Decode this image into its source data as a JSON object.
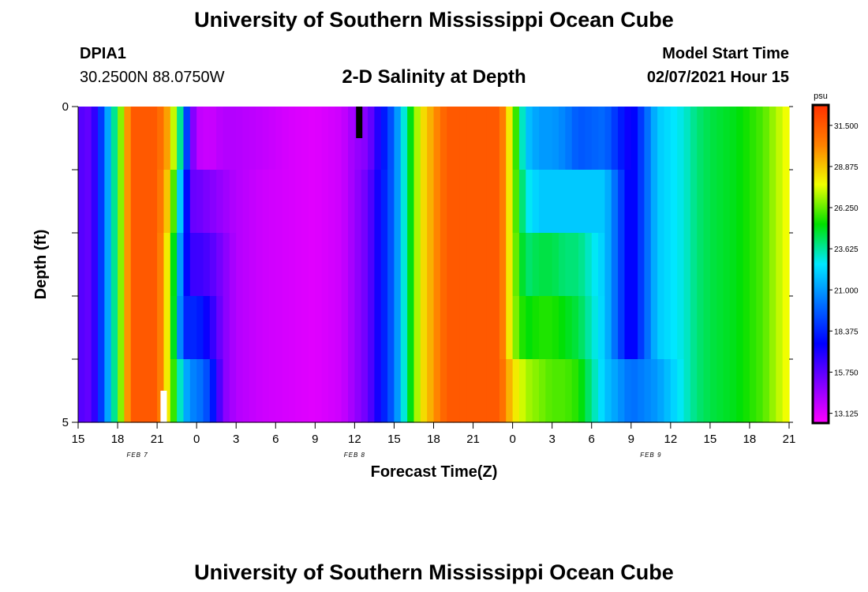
{
  "page": {
    "title_top": "University of Southern Mississippi Ocean Cube",
    "title_bottom": "University of Southern Mississippi Ocean Cube",
    "station_id": "DPIA1",
    "station_coords": "30.2500N 88.0750W",
    "plot_title": "2-D Salinity at Depth",
    "model_label": "Model Start Time",
    "model_time": "02/07/2021 Hour 15"
  },
  "colors": {
    "palette": [
      "#ff00ff",
      "#8000ff",
      "#0000ff",
      "#0070ff",
      "#00e8ff",
      "#00e000",
      "#f0ff00",
      "#ff8000",
      "#ff3000"
    ],
    "background": "#ffffff",
    "marker_black": "#000000",
    "marker_white": "#ffffff"
  },
  "chart_data": {
    "type": "heatmap",
    "title": "2-D Salinity at Depth",
    "xlabel": "Forecast Time(Z)",
    "ylabel": "Depth (ft)",
    "x_tick_labels": [
      "15",
      "18",
      "21",
      "0",
      "3",
      "6",
      "9",
      "12",
      "15",
      "18",
      "21",
      "0",
      "3",
      "6",
      "9",
      "12",
      "15",
      "18",
      "21"
    ],
    "date_labels": [
      {
        "text": "FEB 7",
        "hour": 4.5
      },
      {
        "text": "FEB 8",
        "hour": 21
      },
      {
        "text": "FEB 9",
        "hour": 43.5
      }
    ],
    "x_range_hours": [
      0,
      54
    ],
    "y_tick_labels": [
      "0",
      "5"
    ],
    "y_range_ft": [
      0,
      5
    ],
    "depth_levels_ft": [
      0.5,
      1.5,
      2.5,
      3.5,
      4.5
    ],
    "colorbar": {
      "unit": "psu",
      "ticks": [
        "31.500",
        "28.875",
        "26.250",
        "23.625",
        "21.000",
        "18.375",
        "15.750",
        "13.125"
      ],
      "min": 12.5,
      "max": 32.8
    },
    "salinity_profiles_psu": {
      "hours": [
        0,
        1,
        2,
        3,
        4,
        5,
        6,
        7,
        8,
        8.5,
        9,
        10,
        11,
        12,
        14,
        16,
        18,
        20,
        21,
        22,
        24,
        26,
        28,
        30,
        32,
        33,
        34,
        35,
        36,
        37,
        38,
        40,
        42,
        44,
        45,
        46,
        47,
        48,
        50,
        52,
        53,
        54
      ],
      "levels": [
        [
          16,
          15.5,
          20,
          25,
          31.5,
          31.5,
          31.5,
          29,
          22,
          16,
          13.8,
          13.5,
          14,
          14,
          13.7,
          13.3,
          13.1,
          13.5,
          14.5,
          15,
          20,
          28,
          31.5,
          31.5,
          31.5,
          27,
          22,
          21,
          21,
          20.5,
          19.5,
          20,
          17,
          22,
          22.5,
          23,
          24,
          24.5,
          25,
          26,
          27,
          28
        ],
        [
          16,
          15.5,
          20,
          25,
          31.5,
          31.5,
          31.5,
          28,
          20,
          15.5,
          15.5,
          15,
          14.5,
          14,
          13.5,
          13.3,
          13.1,
          13.5,
          14.5,
          15.5,
          20,
          28,
          31.5,
          31.5,
          31.5,
          27,
          23,
          22,
          22,
          22,
          22,
          22,
          17,
          22,
          22.5,
          23,
          24,
          24.5,
          25,
          26,
          27,
          28
        ],
        [
          16,
          15.5,
          20,
          25,
          31.5,
          31.5,
          31.5,
          27,
          19,
          16.3,
          16.5,
          16,
          15,
          14,
          13.5,
          13.3,
          13.1,
          13.5,
          14.5,
          15.5,
          20,
          28,
          31.5,
          31.5,
          31.5,
          27,
          24,
          24.5,
          24.5,
          24,
          24,
          22,
          17,
          22,
          22.5,
          23,
          24,
          24.5,
          25,
          26,
          27,
          28
        ],
        [
          16,
          15.5,
          20,
          25,
          31.5,
          31.5,
          31.5,
          27,
          18.5,
          18.3,
          18.5,
          17,
          15,
          14,
          13.5,
          13.3,
          13.1,
          13.5,
          14.5,
          15.5,
          20,
          28,
          31.5,
          31.5,
          31.5,
          27,
          25,
          25.5,
          25.5,
          25,
          24.5,
          22,
          17,
          22,
          22.5,
          23,
          24,
          24.5,
          25,
          26,
          27,
          28
        ],
        [
          16,
          15.5,
          20,
          25,
          31.5,
          31.5,
          31.5,
          27,
          22,
          20.5,
          20.5,
          19,
          15,
          14,
          13.5,
          13.3,
          13.1,
          13.5,
          14.5,
          15.5,
          20,
          28,
          31.5,
          31.5,
          31.5,
          28.5,
          27,
          26.5,
          26,
          26,
          25.5,
          22,
          20,
          21,
          22,
          23,
          24,
          24.5,
          25,
          26,
          27,
          28
        ]
      ]
    },
    "markers": [
      {
        "color": "black",
        "hour": 21.35,
        "depth_from": 0,
        "depth_to": 0.5
      },
      {
        "color": "white",
        "hour": 6.5,
        "depth_from": 4.5,
        "depth_to": 5
      }
    ]
  }
}
